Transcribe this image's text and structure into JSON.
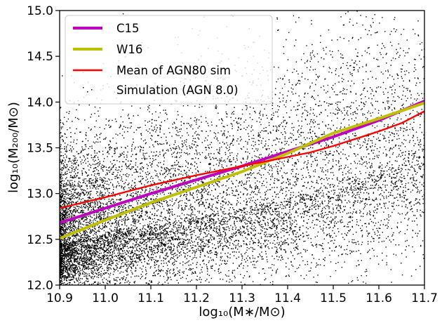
{
  "chart_data": {
    "type": "scatter",
    "title": "",
    "xlabel": "log₁₀(M∗/M⊙)",
    "ylabel": "log₁₀(M₂₀₀/M⊙)",
    "xlim": [
      10.9,
      11.7
    ],
    "ylim": [
      12.0,
      15.0
    ],
    "xticks": [
      10.9,
      11.0,
      11.1,
      11.2,
      11.3,
      11.4,
      11.5,
      11.6,
      11.7
    ],
    "yticks": [
      12.0,
      12.5,
      13.0,
      13.5,
      14.0,
      14.5,
      15.0
    ],
    "xtick_labels": [
      "10.9",
      "11.0",
      "11.1",
      "11.2",
      "11.3",
      "11.4",
      "11.5",
      "11.6",
      "11.7"
    ],
    "ytick_labels": [
      "12.0",
      "12.5",
      "13.0",
      "13.5",
      "14.0",
      "14.5",
      "15.0"
    ],
    "grid": false,
    "legend_position": "top-left",
    "series": [
      {
        "name": "C15",
        "kind": "line",
        "color": "#bf00bf",
        "x": [
          10.9,
          11.0,
          11.1,
          11.2,
          11.3,
          11.4,
          11.5,
          11.6,
          11.7
        ],
        "y": [
          12.68,
          12.84,
          13.0,
          13.15,
          13.3,
          13.46,
          13.62,
          13.8,
          14.01
        ]
      },
      {
        "name": "W16",
        "kind": "line",
        "color": "#bfbf00",
        "x": [
          10.9,
          11.0,
          11.1,
          11.2,
          11.3,
          11.4,
          11.5,
          11.6,
          11.7
        ],
        "y": [
          12.51,
          12.71,
          12.9,
          13.07,
          13.24,
          13.44,
          13.66,
          13.82,
          13.99
        ]
      },
      {
        "name": "Mean of AGN80 sim",
        "kind": "line",
        "color": "#ff0000",
        "x": [
          10.9,
          11.0,
          11.1,
          11.2,
          11.3,
          11.4,
          11.45,
          11.5,
          11.55,
          11.6,
          11.65,
          11.7
        ],
        "y": [
          12.84,
          12.96,
          13.09,
          13.2,
          13.3,
          13.4,
          13.45,
          13.52,
          13.6,
          13.68,
          13.77,
          13.9
        ]
      },
      {
        "name": "Simulation (AGN 8.0)",
        "kind": "scatter",
        "color": "#000000",
        "description_of_points": "dense point cloud, ~60000 galaxies",
        "density_ridge": {
          "x": [
            10.9,
            11.0,
            11.1,
            11.2,
            11.3,
            11.4,
            11.5,
            11.6,
            11.7
          ],
          "y_center": [
            12.45,
            12.55,
            12.65,
            12.75,
            12.85,
            12.95,
            13.1,
            13.25,
            13.4
          ],
          "y_spread": [
            0.28,
            0.32,
            0.35,
            0.38,
            0.4,
            0.42,
            0.45,
            0.47,
            0.5
          ]
        }
      }
    ]
  }
}
